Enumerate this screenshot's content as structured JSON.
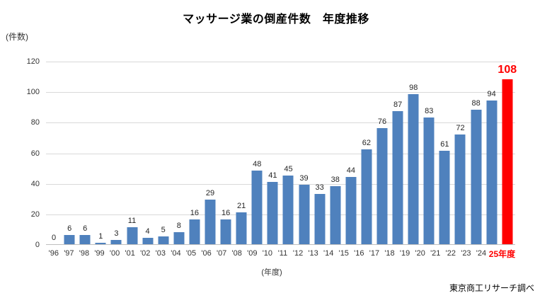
{
  "title": "マッサージ業の倒産件数　年度推移",
  "y_axis_unit": "(件数)",
  "x_axis_title": "(年度)",
  "footer": "東京商工リサーチ調べ",
  "colors": {
    "bar": "#4F81BD",
    "highlight": "#FF0000",
    "gridline": "#D9D9D9",
    "axis_line": "#BFBFBF"
  },
  "chart_data": {
    "type": "bar",
    "title": "マッサージ業の倒産件数　年度推移",
    "xlabel": "(年度)",
    "ylabel": "(件数)",
    "categories": [
      "'96",
      "'97",
      "'98",
      "'99",
      "'00",
      "'01",
      "'02",
      "'03",
      "'04",
      "'05",
      "'06",
      "'07",
      "'08",
      "'09",
      "'10",
      "'11",
      "'12",
      "'13",
      "'14",
      "'15",
      "'16",
      "'17",
      "'18",
      "'19",
      "'20",
      "'21",
      "'22",
      "'23",
      "'24",
      "25年度"
    ],
    "values": [
      0,
      6,
      6,
      1,
      3,
      11,
      4,
      5,
      8,
      16,
      29,
      16,
      21,
      48,
      41,
      45,
      39,
      33,
      38,
      44,
      62,
      76,
      87,
      98,
      83,
      61,
      72,
      88,
      94,
      108
    ],
    "ylim": [
      0,
      120
    ],
    "yticks": [
      0,
      20,
      40,
      60,
      80,
      100,
      120
    ],
    "grid": true,
    "legend": false,
    "highlight_index": 29,
    "source": "東京商工リサーチ調べ"
  }
}
